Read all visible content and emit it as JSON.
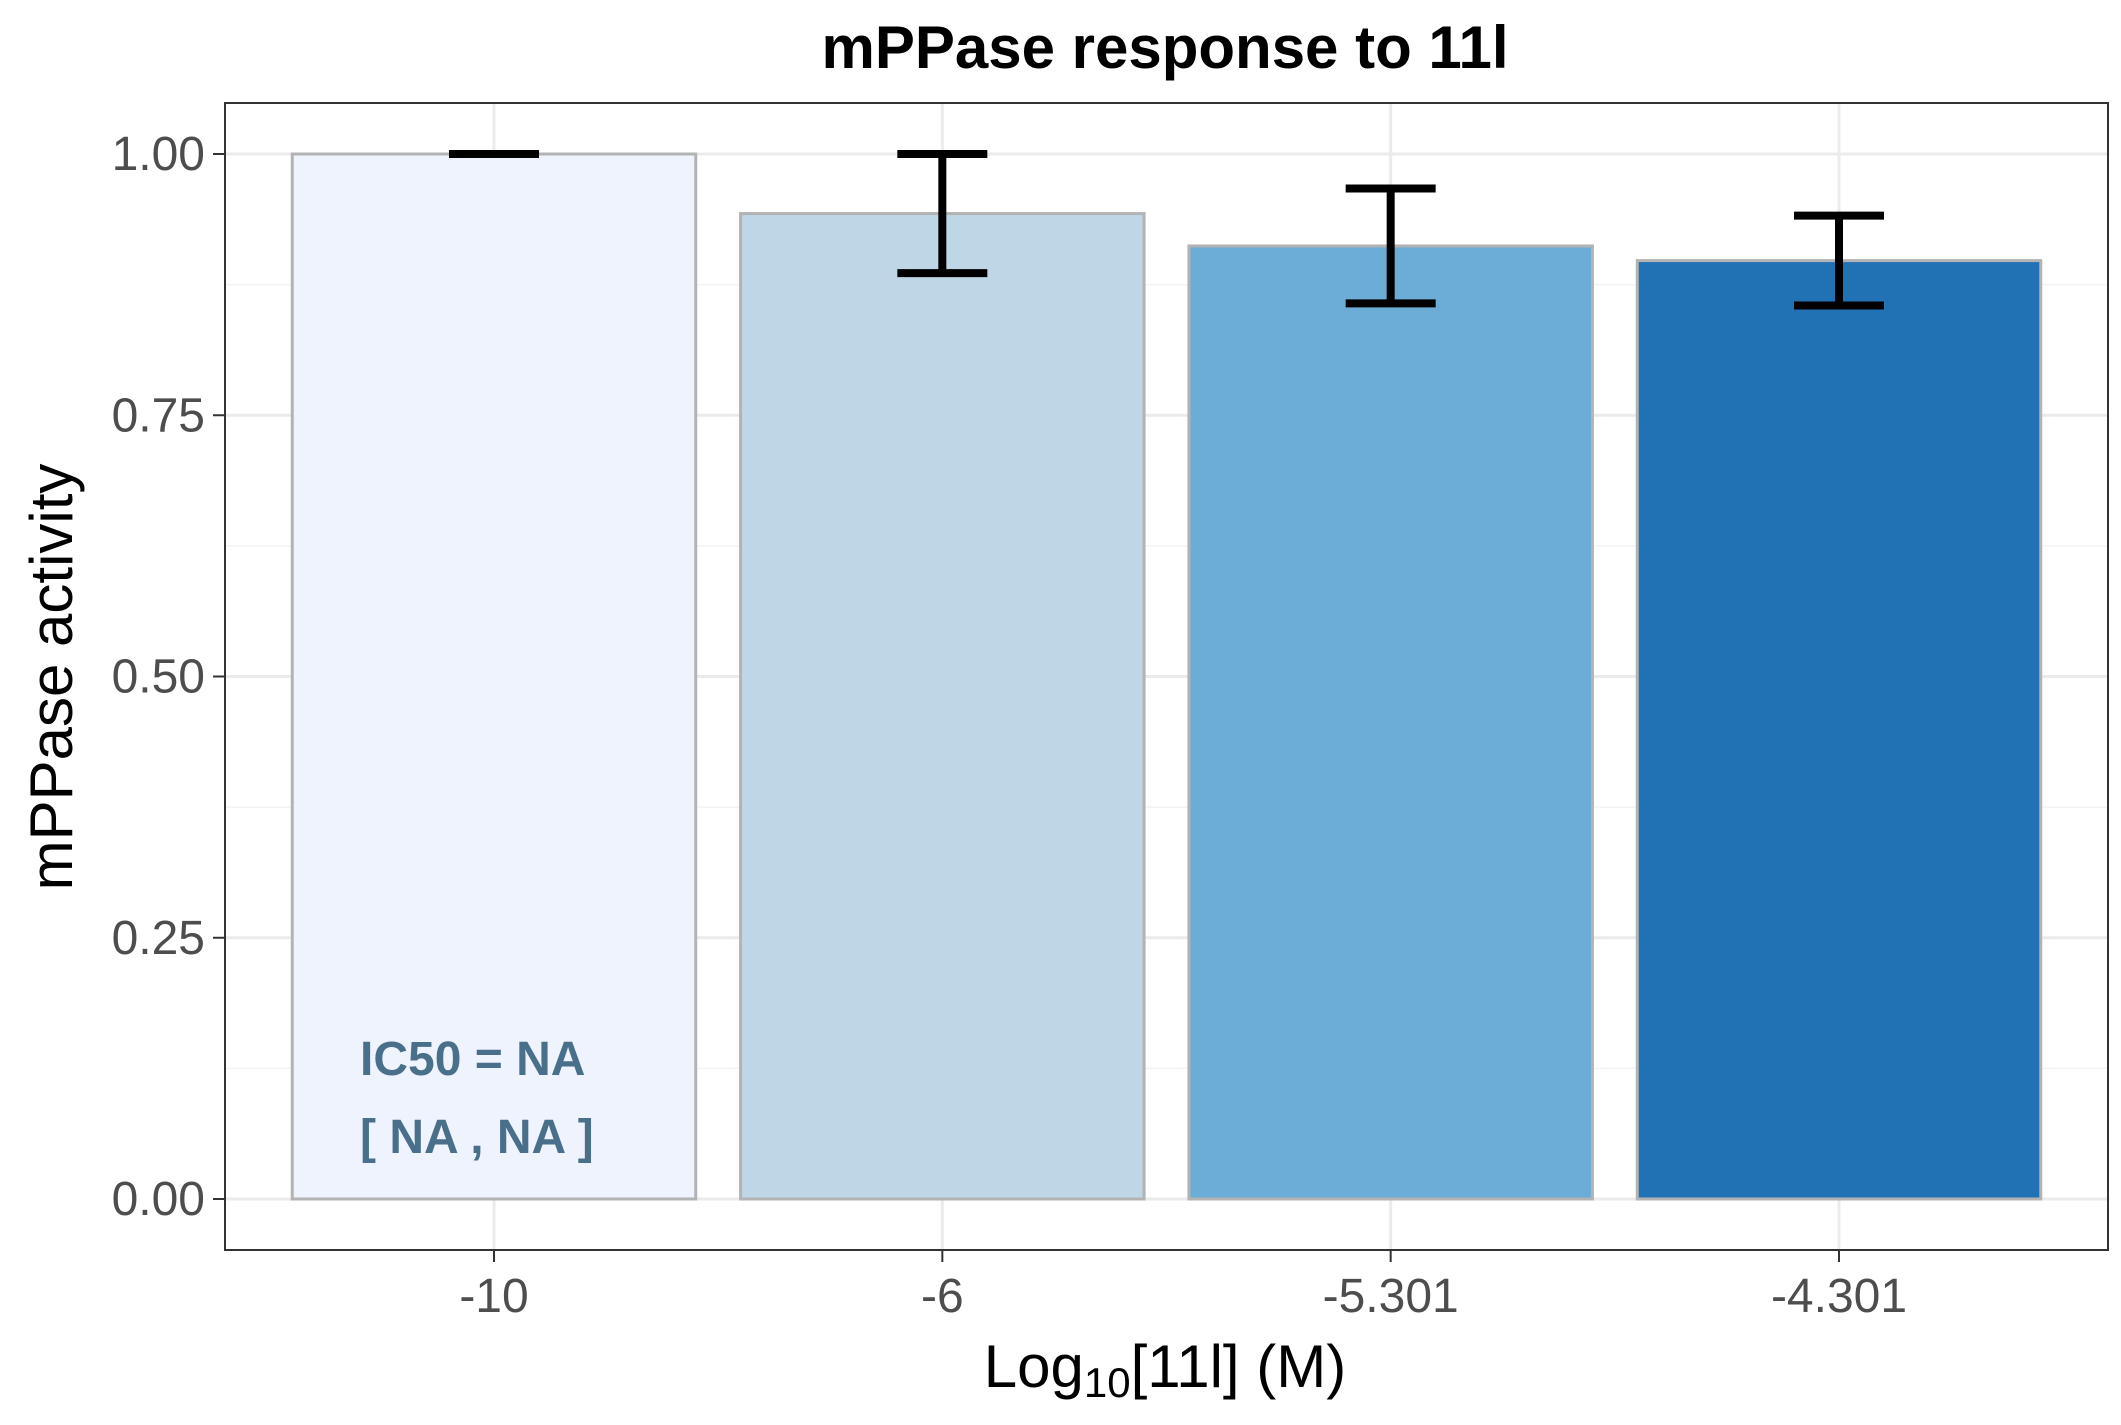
{
  "chart_data": {
    "type": "bar",
    "title": "mPPase response to 11l",
    "xlabel_base": "Log",
    "xlabel_sub": "10",
    "xlabel_rest": "[11l] (M)",
    "ylabel": "mPPase activity",
    "categories": [
      "-10",
      "-6",
      "-5.301",
      "-4.301"
    ],
    "values": [
      1.0,
      0.943,
      0.912,
      0.898
    ],
    "error_low": [
      1.0,
      0.886,
      0.857,
      0.855
    ],
    "error_high": [
      1.0,
      1.0,
      0.967,
      0.941
    ],
    "colors": [
      "#eef3fe",
      "#bfd6e6",
      "#6badd6",
      "#2171b5"
    ],
    "bar_stroke": "#b3b3b3",
    "ylim": [
      -0.05,
      1.05
    ],
    "yticks": [
      "0.00",
      "0.25",
      "0.50",
      "0.75",
      "1.00"
    ],
    "grid": true,
    "annotation": {
      "line1": "IC50 = NA",
      "line2": "[ NA , NA ]",
      "color": "#4a6f8a"
    }
  }
}
